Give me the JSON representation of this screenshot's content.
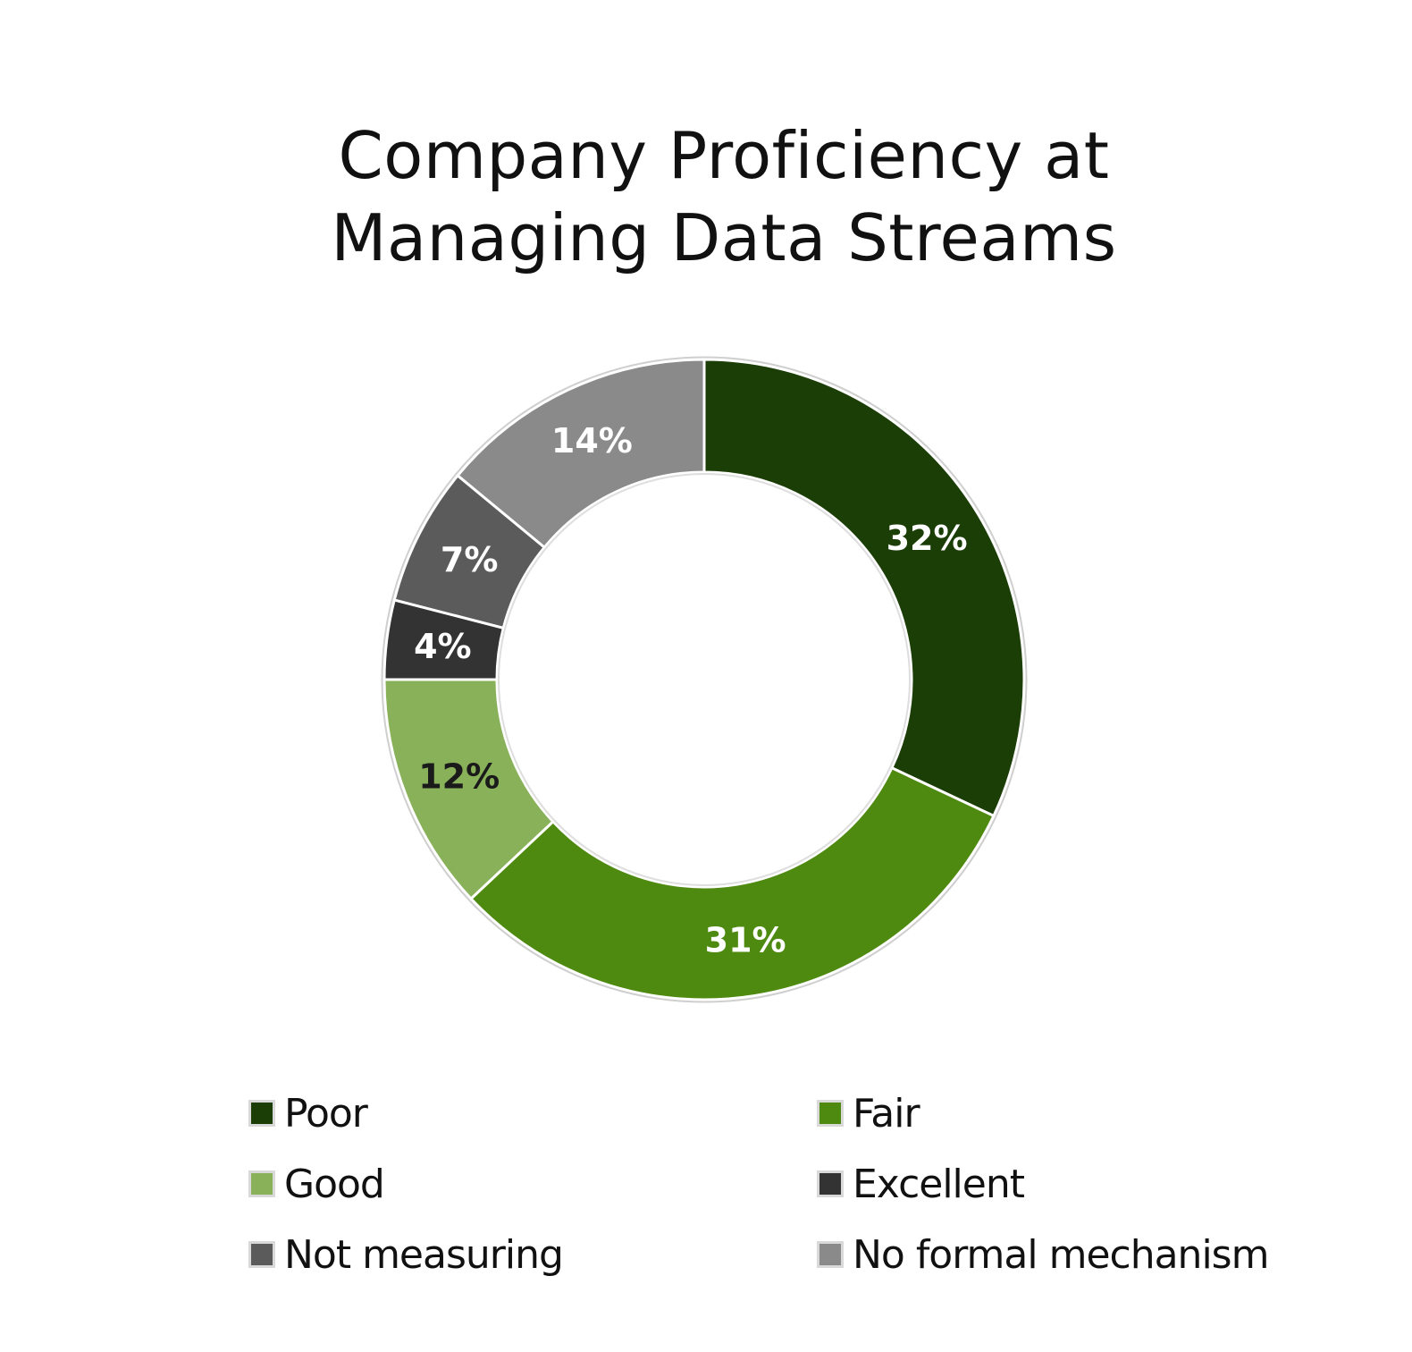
{
  "chart_data": {
    "type": "pie",
    "title_lines": [
      "Company Proficiency at",
      "Managing Data Streams"
    ],
    "labels": [
      "Poor",
      "Fair",
      "Good",
      "Excellent",
      "Not measuring",
      "No formal mechanism"
    ],
    "values": [
      32,
      31,
      12,
      4,
      7,
      14
    ],
    "value_labels": [
      "32%",
      "31%",
      "12%",
      "4%",
      "7%",
      "14%"
    ],
    "colors": [
      "#1b3d06",
      "#4e8a10",
      "#88b159",
      "#333333",
      "#5b5b5b",
      "#8a8a8a"
    ],
    "label_colors": [
      "#ffffff",
      "#ffffff",
      "#1a1a1a",
      "#ffffff",
      "#ffffff",
      "#ffffff"
    ],
    "donut": true,
    "legend_position": "bottom"
  }
}
